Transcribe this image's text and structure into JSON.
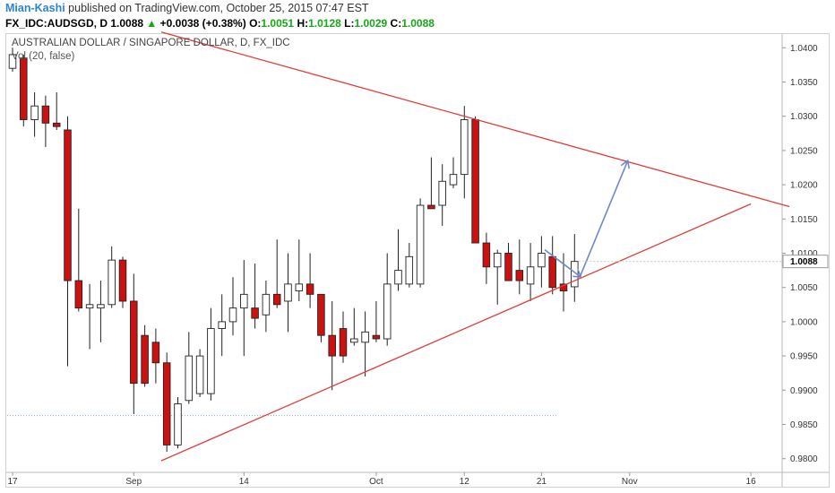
{
  "header": {
    "author": "Mian-Kashi",
    "published_text": "published on TradingView.com, October 25, 2015 07:47 EST",
    "symbol_line": "FX_IDC:AUDSGD, D",
    "last": "1.0088",
    "arrow": "▲",
    "change": "+0.0038 (+0.38%)",
    "o_label": "O:",
    "o_value": "1.0051",
    "h_label": "H:",
    "h_value": "1.0128",
    "l_label": "L:",
    "l_value": "1.0029",
    "c_label": "C:",
    "c_value": "1.0088"
  },
  "chart_title": "AUSTRALIAN DOLLAR / SINGAPORE DOLLAR, D, FX_IDC",
  "indicator_label": "Vol (20, false)",
  "colors": {
    "up": "#ffffff",
    "down": "#cc1111",
    "wick": "#222222",
    "trendline": "#e03c3c",
    "arrow": "#6f88c8",
    "dotted": "#7fb1d8"
  },
  "chart_data": {
    "type": "candlestick",
    "ylim": [
      0.978,
      1.042
    ],
    "y_ticks": [
      "1.0400",
      "1.0350",
      "1.0300",
      "1.0250",
      "1.0200",
      "1.0150",
      "1.0100",
      "1.0050",
      "1.0000",
      "0.9950",
      "0.9900",
      "0.9850",
      "0.9800"
    ],
    "x_ticks": [
      {
        "label": "17",
        "i": 0
      },
      {
        "label": "Sep",
        "i": 11
      },
      {
        "label": "14",
        "i": 21
      },
      {
        "label": "Oct",
        "i": 33
      },
      {
        "label": "12",
        "i": 41
      },
      {
        "label": "21",
        "i": 48
      },
      {
        "label": "Nov",
        "i": 56
      },
      {
        "label": "16",
        "i": 67
      }
    ],
    "last_price": "1.0088",
    "candles": [
      {
        "o": 1.037,
        "h": 1.04,
        "l": 1.0365,
        "c": 1.039
      },
      {
        "o": 1.0385,
        "h": 1.039,
        "l": 1.0285,
        "c": 1.0295
      },
      {
        "o": 1.0295,
        "h": 1.0335,
        "l": 1.027,
        "c": 1.0315
      },
      {
        "o": 1.0315,
        "h": 1.033,
        "l": 1.0255,
        "c": 1.029
      },
      {
        "o": 1.029,
        "h": 1.0335,
        "l": 1.028,
        "c": 1.0285
      },
      {
        "o": 1.028,
        "h": 1.03,
        "l": 0.9935,
        "c": 1.006
      },
      {
        "o": 1.006,
        "h": 1.0165,
        "l": 1.0015,
        "c": 1.002
      },
      {
        "o": 1.002,
        "h": 1.0055,
        "l": 0.996,
        "c": 1.0025
      },
      {
        "o": 1.002,
        "h": 1.006,
        "l": 0.997,
        "c": 1.0025
      },
      {
        "o": 1.0025,
        "h": 1.011,
        "l": 1.002,
        "c": 1.009
      },
      {
        "o": 1.009,
        "h": 1.0095,
        "l": 1.002,
        "c": 1.003
      },
      {
        "o": 1.003,
        "h": 1.007,
        "l": 0.9865,
        "c": 0.991
      },
      {
        "o": 0.998,
        "h": 0.9995,
        "l": 0.9905,
        "c": 0.991
      },
      {
        "o": 0.997,
        "h": 0.999,
        "l": 0.991,
        "c": 0.994
      },
      {
        "o": 0.994,
        "h": 0.9955,
        "l": 0.981,
        "c": 0.982
      },
      {
        "o": 0.982,
        "h": 0.989,
        "l": 0.9815,
        "c": 0.988
      },
      {
        "o": 0.9885,
        "h": 0.9985,
        "l": 0.988,
        "c": 0.995
      },
      {
        "o": 0.9895,
        "h": 0.996,
        "l": 0.989,
        "c": 0.995
      },
      {
        "o": 0.9895,
        "h": 1.002,
        "l": 0.9885,
        "c": 0.999
      },
      {
        "o": 0.999,
        "h": 1.004,
        "l": 0.995,
        "c": 1.0
      },
      {
        "o": 1.0,
        "h": 1.0065,
        "l": 0.998,
        "c": 1.002
      },
      {
        "o": 1.002,
        "h": 1.009,
        "l": 0.995,
        "c": 1.004
      },
      {
        "o": 1.002,
        "h": 1.0085,
        "l": 0.999,
        "c": 1.0005
      },
      {
        "o": 1.001,
        "h": 1.006,
        "l": 0.9985,
        "c": 1.004
      },
      {
        "o": 1.004,
        "h": 1.012,
        "l": 1.002,
        "c": 1.0025
      },
      {
        "o": 1.003,
        "h": 1.01,
        "l": 0.9985,
        "c": 1.0055
      },
      {
        "o": 1.0045,
        "h": 1.012,
        "l": 1.003,
        "c": 1.0055
      },
      {
        "o": 1.0055,
        "h": 1.01,
        "l": 1.002,
        "c": 1.004
      },
      {
        "o": 1.004,
        "h": 1.004,
        "l": 0.997,
        "c": 0.998
      },
      {
        "o": 0.998,
        "h": 1.003,
        "l": 0.99,
        "c": 0.995
      },
      {
        "o": 0.999,
        "h": 1.0015,
        "l": 0.994,
        "c": 0.995
      },
      {
        "o": 0.997,
        "h": 1.002,
        "l": 0.9965,
        "c": 0.9975
      },
      {
        "o": 0.997,
        "h": 1.0015,
        "l": 0.992,
        "c": 0.9985
      },
      {
        "o": 0.998,
        "h": 1.003,
        "l": 0.997,
        "c": 0.9975
      },
      {
        "o": 0.9975,
        "h": 1.01,
        "l": 0.9965,
        "c": 1.0055
      },
      {
        "o": 1.0055,
        "h": 1.0135,
        "l": 1.0045,
        "c": 1.0075
      },
      {
        "o": 1.0055,
        "h": 1.0115,
        "l": 1.005,
        "c": 1.0095
      },
      {
        "o": 1.0055,
        "h": 1.018,
        "l": 1.005,
        "c": 1.017
      },
      {
        "o": 1.017,
        "h": 1.024,
        "l": 1.0165,
        "c": 1.0165
      },
      {
        "o": 1.017,
        "h": 1.023,
        "l": 1.014,
        "c": 1.0205
      },
      {
        "o": 1.02,
        "h": 1.024,
        "l": 1.0195,
        "c": 1.0215
      },
      {
        "o": 1.0215,
        "h": 1.0315,
        "l": 1.018,
        "c": 1.0295
      },
      {
        "o": 1.0295,
        "h": 1.03,
        "l": 1.0115,
        "c": 1.0115
      },
      {
        "o": 1.0115,
        "h": 1.013,
        "l": 1.0055,
        "c": 1.008
      },
      {
        "o": 1.008,
        "h": 1.0105,
        "l": 1.0025,
        "c": 1.01
      },
      {
        "o": 1.01,
        "h": 1.0115,
        "l": 1.006,
        "c": 1.006
      },
      {
        "o": 1.0075,
        "h": 1.012,
        "l": 1.004,
        "c": 1.006
      },
      {
        "o": 1.0055,
        "h": 1.0115,
        "l": 1.003,
        "c": 1.008
      },
      {
        "o": 1.008,
        "h": 1.0125,
        "l": 1.005,
        "c": 1.01
      },
      {
        "o": 1.0095,
        "h": 1.0125,
        "l": 1.004,
        "c": 1.005
      },
      {
        "o": 1.0055,
        "h": 1.01,
        "l": 1.0015,
        "c": 1.0045
      },
      {
        "o": 1.0051,
        "h": 1.0128,
        "l": 1.0029,
        "c": 1.0088
      }
    ],
    "trendlines": [
      {
        "name": "upper",
        "from": {
          "i": 13.5,
          "y": 1.0423
        },
        "to": {
          "i": 70.5,
          "y": 1.0168
        }
      },
      {
        "name": "lower",
        "from": {
          "i": 13.5,
          "y": 0.9797
        },
        "to": {
          "i": 67,
          "y": 1.0172
        }
      }
    ],
    "projection": [
      {
        "i": 48.3,
        "y": 1.0105
      },
      {
        "i": 51.5,
        "y": 1.0066
      },
      {
        "i": 55.8,
        "y": 1.0234
      }
    ],
    "dotted_level": {
      "y": 0.9863,
      "to_i": 49.5
    }
  }
}
